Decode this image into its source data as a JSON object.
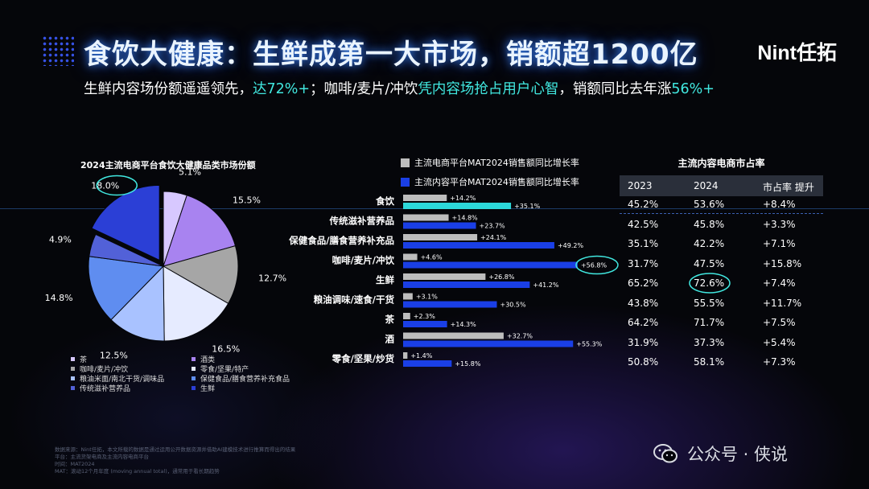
{
  "header": {
    "title": "食饮大健康：生鲜成第一大市场，销额超1200亿",
    "logo": "Nint任拓",
    "subtitle_parts": [
      {
        "text": "生鲜内容场份额遥遥领先，",
        "hl": false
      },
      {
        "text": "达72%+",
        "hl": true
      },
      {
        "text": "；咖啡/麦片/冲饮",
        "hl": false
      },
      {
        "text": "凭内容场抢占用户心智",
        "hl": true
      },
      {
        "text": "，销额同比去年涨",
        "hl": false
      },
      {
        "text": "56%+",
        "hl": true
      }
    ]
  },
  "colors": {
    "accent_cyan": "#41e8e0",
    "title_glow": "#3b7bff",
    "grey_bar": "#bdbdbd",
    "blue_bar": "#1a3fe6",
    "highlight_bar": "#2cd9da"
  },
  "chart_data": [
    {
      "type": "pie",
      "title": "2024主流电商平台食饮大健康品类市场份额",
      "slices": [
        {
          "label": "生鲜",
          "value": 18.0,
          "color": "#2b3fd6",
          "exploded": true,
          "circled": true
        },
        {
          "label": "茶",
          "value": 5.1,
          "color": "#d7c8ff"
        },
        {
          "label": "酒类",
          "value": 15.5,
          "color": "#a883f0"
        },
        {
          "label": "咖啡/麦片/冲饮",
          "value": 12.7,
          "color": "#a6a6a6"
        },
        {
          "label": "零食/坚果/特产",
          "value": 16.5,
          "color": "#e6ebff"
        },
        {
          "label": "粮油米面/南北干货/调味品",
          "value": 12.5,
          "color": "#a9c2ff"
        },
        {
          "label": "保健食品/膳食营养补充食品",
          "value": 14.8,
          "color": "#5f8df0"
        },
        {
          "label": "传统滋补营养品",
          "value": 4.9,
          "color": "#5261d8"
        }
      ],
      "legend": [
        "茶",
        "酒类",
        "咖啡/麦片/冲饮",
        "零食/坚果/特产",
        "粮油米面/南北干货/调味品",
        "保健食品/膳食营养补充食品",
        "传统滋补营养品",
        "生鲜"
      ],
      "legend_placement": "bottom"
    },
    {
      "type": "bar",
      "orientation": "horizontal",
      "categories": [
        "食饮",
        "传统滋补营养品",
        "保健食品/膳食营养补充品",
        "咖啡/麦片/冲饮",
        "生鲜",
        "粮油调味/速食/干货",
        "茶",
        "酒",
        "零食/坚果/炒货"
      ],
      "series": [
        {
          "name": "主流电商平台MAT2024销售额同比增长率",
          "color": "#bdbdbd",
          "values": [
            14.2,
            14.8,
            24.1,
            4.6,
            26.8,
            3.1,
            2.3,
            32.7,
            1.4
          ],
          "labels": [
            "+14.2%",
            "+14.8%",
            "+24.1%",
            "+4.6%",
            "+26.8%",
            "+3.1%",
            "+2.3%",
            "+32.7%",
            "+1.4%"
          ]
        },
        {
          "name": "主流内容平台MAT2024销售额同比增长率",
          "color": "#1a3fe6",
          "values": [
            35.1,
            23.7,
            49.2,
            56.8,
            41.2,
            30.5,
            14.3,
            55.3,
            15.8
          ],
          "labels": [
            "+35.1%",
            "+23.7%",
            "+49.2%",
            "+56.8%",
            "+41.2%",
            "+30.5%",
            "+14.3%",
            "+55.3%",
            "+15.8%"
          ]
        }
      ],
      "highlight_category": "食饮",
      "circled_label": "+56.8%",
      "legend_placement": "top"
    },
    {
      "type": "table",
      "title": "主流内容电商市占率",
      "columns": [
        "2023",
        "2024",
        "市占率 提升"
      ],
      "rows": [
        [
          "45.2%",
          "53.6%",
          "+8.4%"
        ],
        [
          "42.5%",
          "45.8%",
          "+3.3%"
        ],
        [
          "35.1%",
          "42.2%",
          "+7.1%"
        ],
        [
          "31.7%",
          "47.5%",
          "+15.8%"
        ],
        [
          "65.2%",
          "72.6%",
          "+7.4%"
        ],
        [
          "43.8%",
          "55.5%",
          "+11.7%"
        ],
        [
          "64.2%",
          "71.7%",
          "+7.5%"
        ],
        [
          "31.9%",
          "37.3%",
          "+5.4%"
        ],
        [
          "50.8%",
          "58.1%",
          "+7.3%"
        ]
      ],
      "circled_cell": "72.6%"
    }
  ],
  "footer": {
    "lines": [
      "数据来源：Nint任拓，本文所载的数据是通过运用公开数据资源并借助AI建模技术进行推算而得出的结果",
      "平台：主流货架电商及主流内容电商平台",
      "时间：MAT2024",
      "MAT：滚动12个月年度 (moving annual total)，通常用于看长期趋势"
    ]
  },
  "watermark": "公众号 · 侠说"
}
